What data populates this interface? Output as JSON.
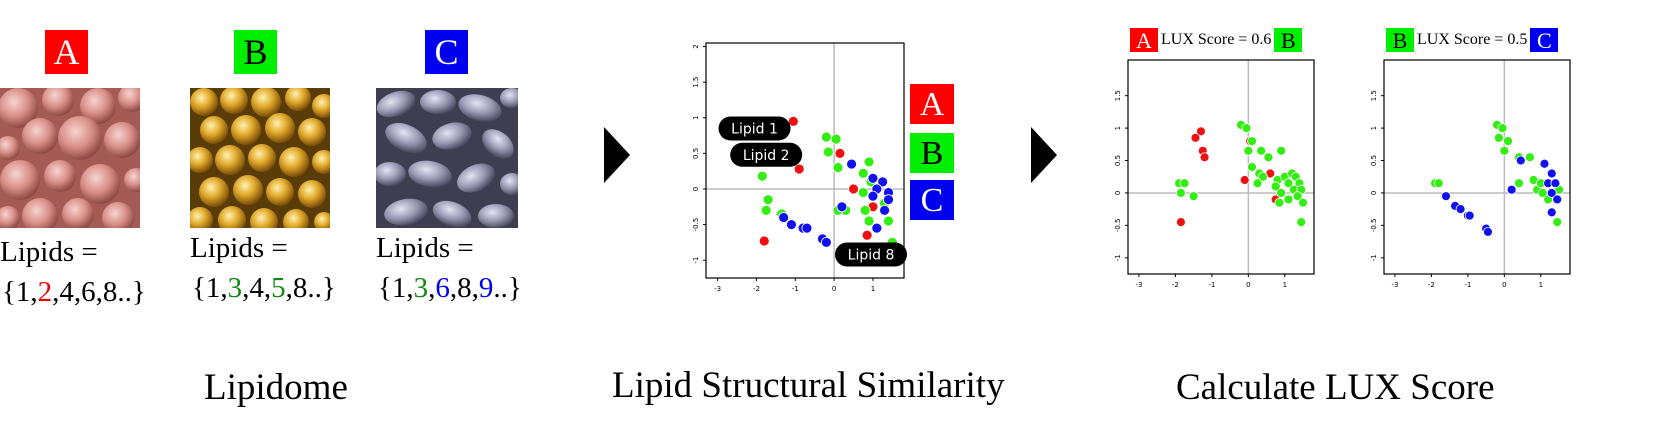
{
  "colors": {
    "A": "#ff0000",
    "B": "#00ee00",
    "C": "#0000ee",
    "red_text": "#ee0000",
    "green_text": "#118811",
    "blue_text": "#0000ee",
    "dot_red": "#ee1111",
    "dot_green": "#33ee11",
    "dot_blue": "#1111ee"
  },
  "lipidome": {
    "title": "Lipidome",
    "organisms": [
      {
        "label": "A",
        "lipids_label": "Lipids =",
        "set": [
          {
            "t": "{1,",
            "c": ""
          },
          {
            "t": "2",
            "c": "red"
          },
          {
            "t": ",4,6,8..}",
            "c": ""
          }
        ]
      },
      {
        "label": "B",
        "lipids_label": "Lipids =",
        "set": [
          {
            "t": "{1,",
            "c": ""
          },
          {
            "t": "3",
            "c": "green"
          },
          {
            "t": ",4,",
            "c": ""
          },
          {
            "t": "5",
            "c": "green"
          },
          {
            "t": ",8..}",
            "c": ""
          }
        ]
      },
      {
        "label": "C",
        "lipids_label": "Lipids =",
        "set": [
          {
            "t": "{1,",
            "c": ""
          },
          {
            "t": "3",
            "c": "green"
          },
          {
            "t": ",",
            "c": ""
          },
          {
            "t": "6",
            "c": "blue"
          },
          {
            "t": ",8,",
            "c": ""
          },
          {
            "t": "9",
            "c": "blue"
          },
          {
            "t": "..}",
            "c": ""
          }
        ]
      }
    ]
  },
  "similarity": {
    "title": "Lipid Structural Similarity",
    "legend": [
      "A",
      "B",
      "C"
    ],
    "tags": [
      "Lipid 1",
      "Lipid 2",
      "Lipid 8"
    ]
  },
  "lux": {
    "title": "Calculate LUX Score",
    "panels": [
      {
        "left": "A",
        "text": "LUX Score = 0.6",
        "right": "B"
      },
      {
        "left": "B",
        "text": "LUX Score = 0.5",
        "right": "C"
      }
    ]
  },
  "chart_data": [
    {
      "type": "scatter",
      "xlim": [
        -3.3,
        1.8
      ],
      "ylim": [
        -1.25,
        2.05
      ],
      "xticks": [
        "-3",
        "-2",
        "-1",
        "0",
        "1"
      ],
      "yticks": [
        "-1",
        "-0.5",
        "0",
        "0.5",
        "1",
        "1.5",
        "2"
      ],
      "series": [
        {
          "name": "A",
          "points": [
            [
              -1.05,
              0.95
            ],
            [
              -1.5,
              0.78
            ],
            [
              -1.1,
              0.45
            ],
            [
              -0.9,
              0.28
            ],
            [
              0.15,
              0.5
            ],
            [
              0.5,
              0
            ],
            [
              0.85,
              -0.65
            ],
            [
              1.0,
              -0.25
            ],
            [
              -1.8,
              -0.73
            ]
          ]
        },
        {
          "name": "B",
          "points": [
            [
              -0.2,
              0.73
            ],
            [
              0.05,
              0.7
            ],
            [
              -0.15,
              0.52
            ],
            [
              0.1,
              0.3
            ],
            [
              0.9,
              0.38
            ],
            [
              0.75,
              0.22
            ],
            [
              0.95,
              0.1
            ],
            [
              -1.85,
              0.18
            ],
            [
              -1.75,
              -0.3
            ],
            [
              -1.7,
              -0.15
            ],
            [
              -1.35,
              -0.35
            ],
            [
              0.1,
              -0.3
            ],
            [
              0.3,
              -0.3
            ],
            [
              0.8,
              -0.3
            ],
            [
              0.9,
              -0.45
            ],
            [
              1.3,
              -0.2
            ],
            [
              1.4,
              -0.45
            ],
            [
              0.75,
              -0.05
            ],
            [
              1.5,
              -0.75
            ]
          ]
        },
        {
          "name": "C",
          "points": [
            [
              0.45,
              0.35
            ],
            [
              1.0,
              0.15
            ],
            [
              1.25,
              0.1
            ],
            [
              1.1,
              0.0
            ],
            [
              1.4,
              -0.05
            ],
            [
              1.0,
              -0.1
            ],
            [
              1.3,
              -0.3
            ],
            [
              0.2,
              -0.25
            ],
            [
              -1.3,
              -0.4
            ],
            [
              -1.1,
              -0.5
            ],
            [
              -0.8,
              -0.55
            ],
            [
              -0.7,
              -0.55
            ],
            [
              -0.3,
              -0.7
            ],
            [
              -0.2,
              -0.75
            ],
            [
              1.1,
              -0.55
            ],
            [
              1.4,
              -0.15
            ]
          ]
        }
      ]
    },
    {
      "type": "scatter",
      "xlim": [
        -3.3,
        1.8
      ],
      "ylim": [
        -1.25,
        2.05
      ],
      "xticks": [
        "-3",
        "-2",
        "-1",
        "0",
        "1"
      ],
      "yticks": [
        "-1",
        "-0.5",
        "0",
        "0.5",
        "1",
        "1.5"
      ],
      "series": [
        {
          "name": "A",
          "points": [
            [
              -1.3,
              0.95
            ],
            [
              -1.45,
              0.85
            ],
            [
              -1.25,
              0.65
            ],
            [
              -1.2,
              0.55
            ],
            [
              0.05,
              0.8
            ],
            [
              0.6,
              0.3
            ],
            [
              -0.1,
              0.2
            ],
            [
              0.75,
              -0.1
            ],
            [
              -1.85,
              -0.45
            ]
          ]
        },
        {
          "name": "B",
          "points": [
            [
              -0.2,
              1.05
            ],
            [
              -0.05,
              1.0
            ],
            [
              0.1,
              0.8
            ],
            [
              0.0,
              0.65
            ],
            [
              0.35,
              0.65
            ],
            [
              0.55,
              0.55
            ],
            [
              0.9,
              0.65
            ],
            [
              -1.9,
              0.15
            ],
            [
              -1.75,
              0.15
            ],
            [
              -1.85,
              0.0
            ],
            [
              -1.5,
              -0.05
            ],
            [
              0.1,
              0.4
            ],
            [
              0.3,
              0.3
            ],
            [
              0.4,
              0.25
            ],
            [
              0.8,
              0.2
            ],
            [
              0.25,
              0.15
            ],
            [
              1.0,
              0.25
            ],
            [
              1.2,
              0.3
            ],
            [
              1.3,
              0.25
            ],
            [
              1.1,
              0.15
            ],
            [
              1.4,
              0.15
            ],
            [
              1.25,
              0.05
            ],
            [
              0.75,
              0.1
            ],
            [
              0.9,
              0.0
            ],
            [
              1.45,
              0.05
            ],
            [
              0.85,
              -0.15
            ],
            [
              1.1,
              -0.1
            ],
            [
              1.35,
              -0.05
            ],
            [
              1.5,
              -0.15
            ],
            [
              1.45,
              -0.45
            ]
          ]
        }
      ]
    },
    {
      "type": "scatter",
      "xlim": [
        -3.3,
        1.8
      ],
      "ylim": [
        -1.25,
        2.05
      ],
      "xticks": [
        "-3",
        "-2",
        "-1",
        "0",
        "1"
      ],
      "yticks": [
        "-1",
        "-0.5",
        "0",
        "0.5",
        "1",
        "1.5"
      ],
      "series": [
        {
          "name": "B",
          "points": [
            [
              -0.2,
              1.05
            ],
            [
              -0.05,
              1.0
            ],
            [
              -0.15,
              0.85
            ],
            [
              0.1,
              0.8
            ],
            [
              0.0,
              0.65
            ],
            [
              0.4,
              0.55
            ],
            [
              0.7,
              0.55
            ],
            [
              -1.9,
              0.15
            ],
            [
              -1.8,
              0.15
            ],
            [
              0.4,
              0.15
            ],
            [
              0.8,
              0.2
            ],
            [
              0.9,
              0.05
            ],
            [
              1.0,
              0.15
            ],
            [
              1.3,
              0.3
            ],
            [
              1.5,
              0.05
            ],
            [
              1.45,
              -0.45
            ],
            [
              1.2,
              -0.1
            ],
            [
              1.05,
              0.0
            ]
          ]
        },
        {
          "name": "C",
          "points": [
            [
              -1.6,
              -0.05
            ],
            [
              -1.35,
              -0.2
            ],
            [
              -1.2,
              -0.25
            ],
            [
              -1.0,
              -0.35
            ],
            [
              -0.95,
              -0.35
            ],
            [
              -0.5,
              -0.55
            ],
            [
              -0.45,
              -0.6
            ],
            [
              0.2,
              0.05
            ],
            [
              0.45,
              0.5
            ],
            [
              1.1,
              0.45
            ],
            [
              1.3,
              0.3
            ],
            [
              1.2,
              0.15
            ],
            [
              1.4,
              0.15
            ],
            [
              1.3,
              0.0
            ],
            [
              1.45,
              -0.1
            ],
            [
              1.3,
              -0.3
            ]
          ]
        }
      ]
    }
  ]
}
